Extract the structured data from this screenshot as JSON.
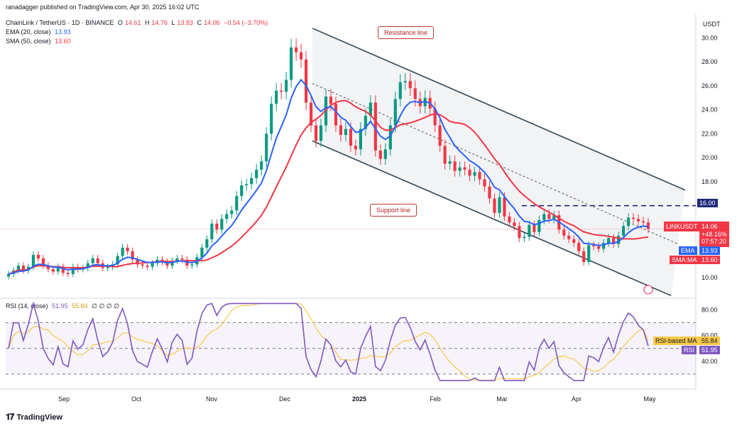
{
  "header": {
    "published": "ranadagger published on TradingView.com, Apr 30, 2025 16:02 UTC",
    "symbol": "ChainLink / TetherUS · 1D · BINANCE",
    "ohlc": {
      "o_label": "O",
      "o": "14.61",
      "h_label": "H",
      "h": "14.76",
      "l_label": "L",
      "l": "13.83",
      "c_label": "C",
      "c": "14.06",
      "change": "−0.54 (−3.70%)"
    },
    "ema_label": "EMA (20, close)",
    "ema_value": "13.93",
    "sma_label": "SMA (50, close)",
    "sma_value": "13.60",
    "rsi_label": "RSI (14, close)",
    "rsi_value": "51.95",
    "rsi_ma_value": "55.84",
    "rsi_extra": "∅ ∅ ∅ ∅"
  },
  "axis": {
    "currency": "USDT",
    "price_ticks": [
      "30.00",
      "28.00",
      "26.00",
      "24.00",
      "22.00",
      "20.00",
      "18.00",
      "16.00",
      "14.00",
      "12.00",
      "10.00"
    ],
    "rsi_ticks": [
      "80.00",
      "60.00",
      "40.00"
    ],
    "x_ticks": [
      "Sep",
      "Oct",
      "Nov",
      "Dec",
      "2025",
      "Feb",
      "Mar",
      "Apr",
      "May"
    ]
  },
  "tags": {
    "resistance_level": "16.00",
    "symbol_tag": "LINKUSDT",
    "price": "14.06",
    "change_pct": "+48.16%",
    "countdown": "07:57:20",
    "ema_tag": "EMA",
    "ema_val": "13.93",
    "sma_tag": "SMA:MA",
    "sma_val": "13.60",
    "rsi_ma_tag": "RSI-based MA",
    "rsi_ma_val": "55.84",
    "rsi_tag": "RSI",
    "rsi_val": "51.95"
  },
  "annotations": {
    "resistance": "Resistance line",
    "support": "Support line"
  },
  "watermark": "TradingView",
  "colors": {
    "up": "#089981",
    "down": "#f23645",
    "ema": "#2962ff",
    "sma": "#f23645",
    "rsi": "#7e57c2",
    "rsi_ma": "#f7c948",
    "channel": "#2f4858"
  },
  "chart_data": {
    "type": "candlestick",
    "title": "ChainLink / TetherUS · 1D · BINANCE",
    "ylabel": "USDT",
    "ylim": [
      8.4,
      31.5
    ],
    "x_ticks": [
      "Sep",
      "Oct",
      "Nov",
      "Dec",
      "2025",
      "Feb",
      "Mar",
      "Apr",
      "May"
    ],
    "close_series_approx": [
      10.3,
      10.6,
      11.0,
      10.6,
      10.9,
      11.9,
      11.6,
      11.0,
      10.7,
      10.5,
      10.9,
      10.4,
      10.3,
      10.9,
      10.7,
      10.8,
      11.2,
      11.6,
      11.2,
      10.8,
      10.9,
      11.1,
      11.8,
      12.5,
      12.2,
      11.5,
      11.1,
      11.0,
      10.9,
      11.2,
      11.5,
      11.3,
      11.0,
      11.4,
      11.6,
      11.5,
      11.0,
      11.1,
      11.7,
      12.5,
      13.2,
      14.5,
      14.0,
      14.9,
      15.3,
      15.6,
      16.8,
      17.7,
      17.8,
      18.3,
      19.0,
      19.7,
      22.0,
      24.5,
      25.6,
      25.5,
      26.5,
      29.2,
      28.8,
      28.2,
      24.6,
      22.7,
      21.4,
      22.7,
      25.1,
      24.5,
      22.7,
      21.9,
      22.4,
      21.0,
      20.7,
      22.4,
      23.5,
      24.6,
      20.6,
      19.9,
      20.7,
      22.7,
      24.9,
      26.3,
      26.4,
      25.8,
      24.9,
      24.3,
      25.0,
      24.1,
      22.7,
      21.0,
      19.5,
      19.7,
      18.9,
      19.2,
      19.0,
      18.5,
      18.8,
      18.2,
      17.6,
      16.6,
      15.4,
      16.7,
      15.1,
      14.6,
      14.3,
      13.3,
      13.4,
      14.4,
      13.8,
      14.8,
      15.3,
      14.9,
      15.2,
      14.0,
      13.5,
      13.2,
      12.9,
      12.2,
      11.3,
      12.7,
      12.6,
      12.4,
      12.9,
      13.3,
      12.8,
      13.5,
      14.3,
      15.0,
      14.9,
      14.7,
      14.6,
      14.06
    ],
    "ema20": {
      "name": "EMA",
      "last": 13.93
    },
    "sma50": {
      "name": "SMA:MA",
      "last": 13.6
    },
    "resistance_level": 16.0,
    "rsi": {
      "name": "RSI",
      "last": 51.95,
      "ma_name": "RSI-based MA",
      "ma_last": 55.84,
      "ylim": [
        20,
        88
      ],
      "band_upper": 70,
      "band_mid": 50,
      "band_lower": 30
    }
  }
}
